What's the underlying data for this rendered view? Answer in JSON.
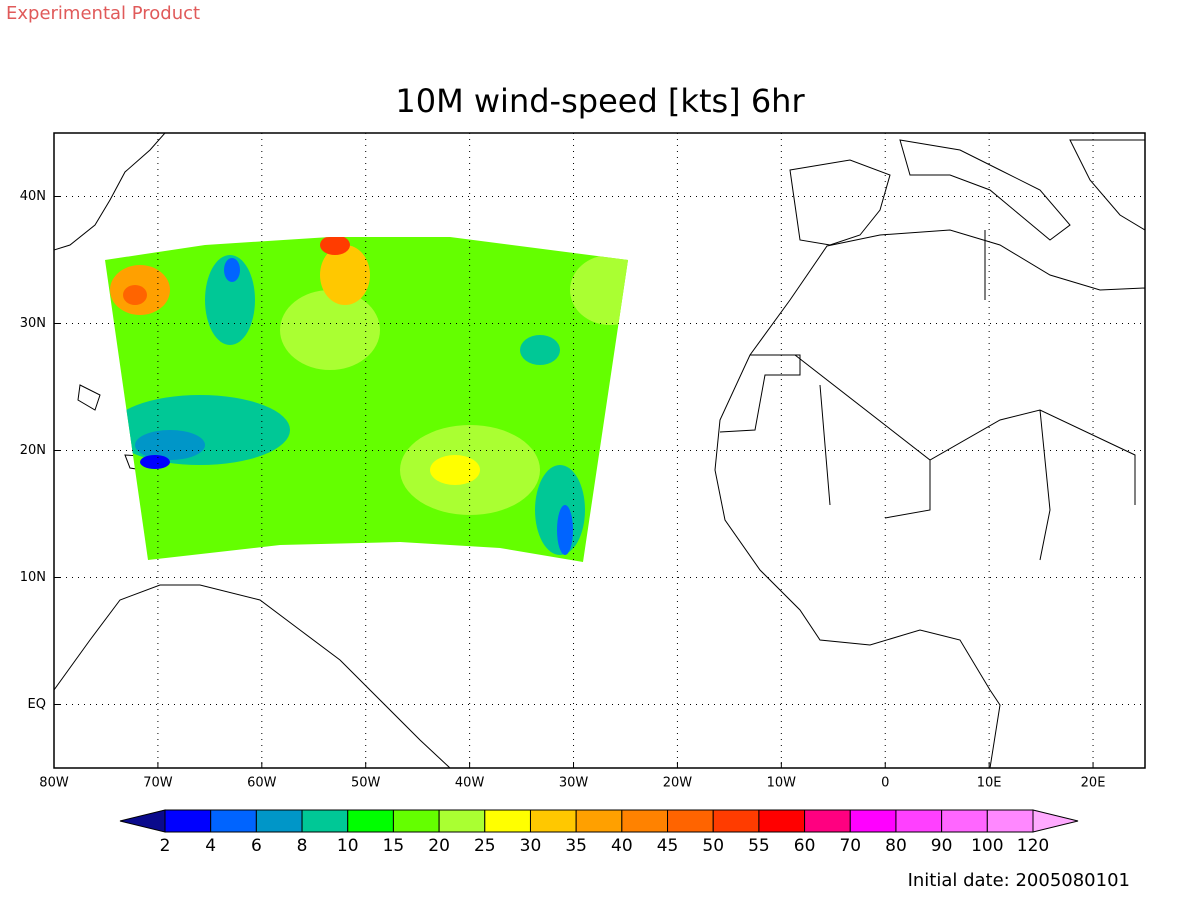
{
  "header": {
    "tag": "Experimental Product"
  },
  "map": {
    "title": "10M wind-speed [kts] 6hr",
    "lon_range": [
      -80,
      25
    ],
    "lat_range": [
      -5,
      45
    ],
    "lon_ticks": [
      {
        "value": -80,
        "label": "80W"
      },
      {
        "value": -70,
        "label": "70W"
      },
      {
        "value": -60,
        "label": "60W"
      },
      {
        "value": -50,
        "label": "50W"
      },
      {
        "value": -40,
        "label": "40W"
      },
      {
        "value": -30,
        "label": "30W"
      },
      {
        "value": -20,
        "label": "20W"
      },
      {
        "value": -10,
        "label": "10W"
      },
      0,
      {
        "value": 10,
        "label": "10E"
      },
      {
        "value": 20,
        "label": "20E"
      }
    ],
    "lat_ticks": [
      {
        "value": 0,
        "label": "EQ"
      },
      {
        "value": 10,
        "label": "10N"
      },
      {
        "value": 20,
        "label": "20N"
      },
      {
        "value": 30,
        "label": "30N"
      },
      {
        "value": 40,
        "label": "40N"
      }
    ],
    "grid": true
  },
  "colorbar": {
    "levels": [
      2,
      4,
      6,
      8,
      10,
      15,
      20,
      25,
      30,
      35,
      40,
      45,
      50,
      55,
      60,
      70,
      80,
      90,
      100,
      120
    ],
    "colors": [
      "#0a0a8c",
      "#0000ff",
      "#0064ff",
      "#0096c8",
      "#00c896",
      "#00ff00",
      "#64ff00",
      "#aaff32",
      "#ffff00",
      "#ffc800",
      "#ffa000",
      "#ff8200",
      "#ff6400",
      "#ff3c00",
      "#ff0000",
      "#ff0080",
      "#ff00ff",
      "#ff40ff",
      "#ff66ff",
      "#ff88ff",
      "#ffaaff"
    ]
  },
  "footer": {
    "initial_date": "Initial date: 2005080101"
  }
}
